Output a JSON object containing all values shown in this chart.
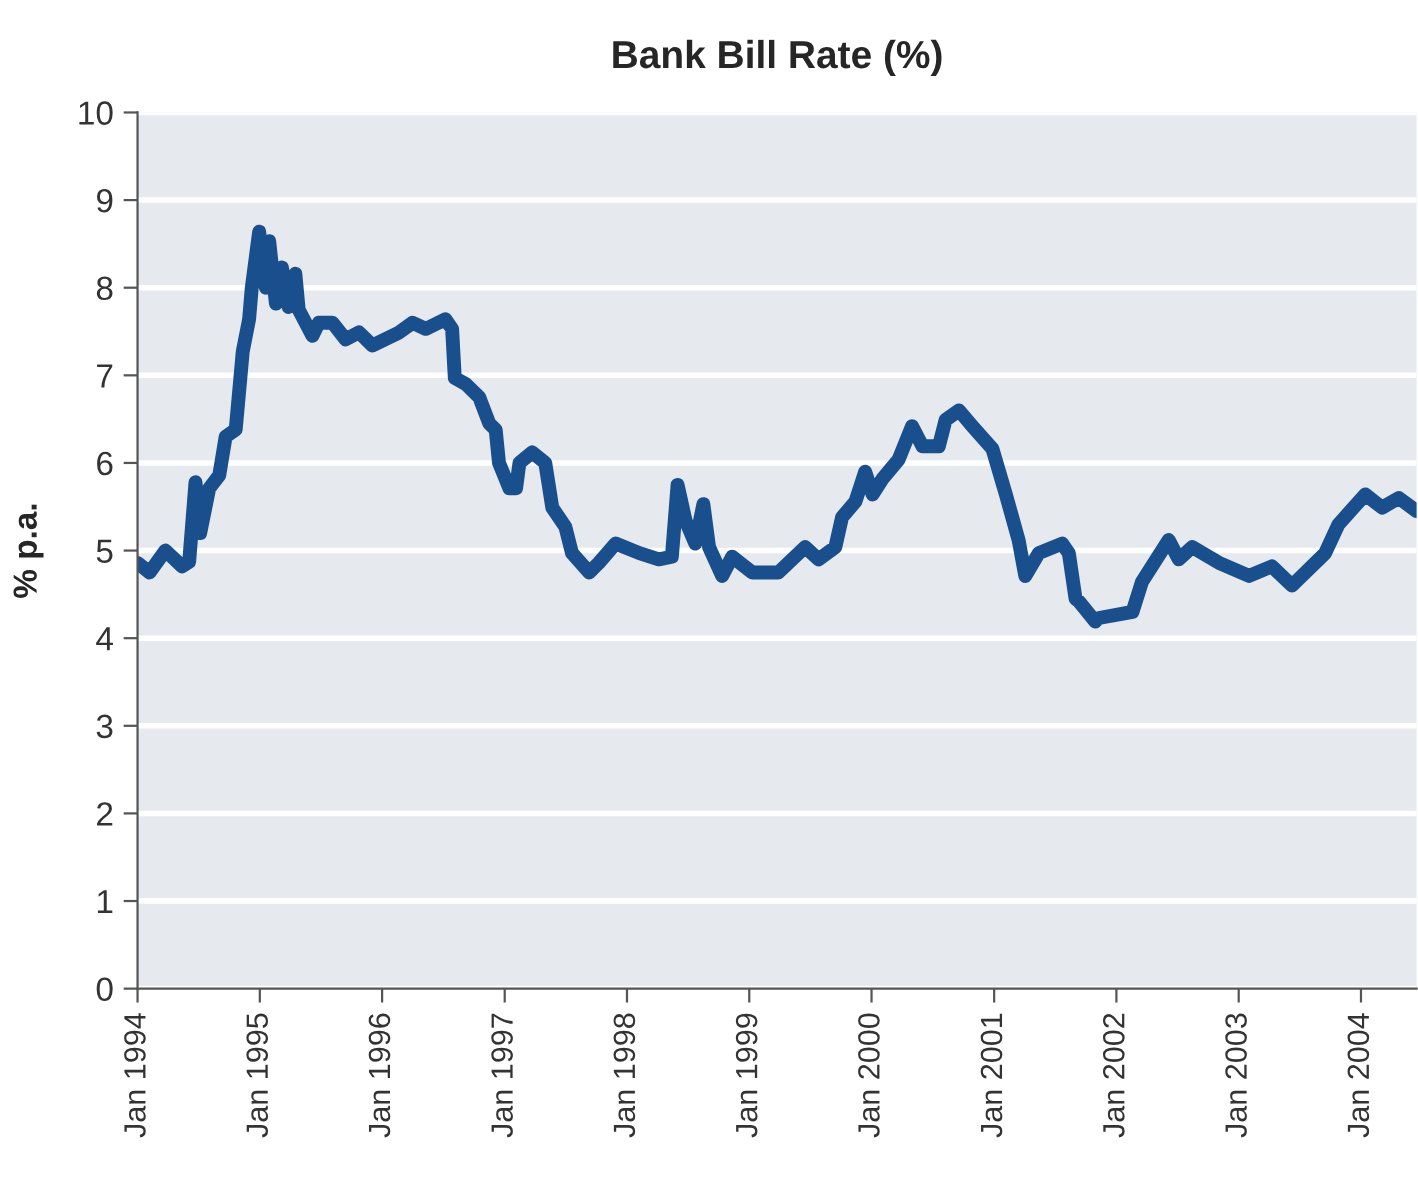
{
  "chart_data": {
    "type": "line",
    "title": "Bank Bill Rate (%)",
    "ylabel": "% p.a.",
    "x": [
      "1994-01-01",
      "1994-02-06",
      "1994-03-25",
      "1994-05-14",
      "1994-06-04",
      "1994-06-23",
      "1994-07-07",
      "1994-08-03",
      "1994-09-02",
      "1994-09-21",
      "1994-10-21",
      "1994-11-11",
      "1994-11-30",
      "1994-12-08",
      "1994-12-30",
      "1995-01-19",
      "1995-01-29",
      "1995-02-18",
      "1995-03-08",
      "1995-03-28",
      "1995-04-17",
      "1995-04-27",
      "1995-06-07",
      "1995-06-26",
      "1995-08-06",
      "1995-09-14",
      "1995-10-24",
      "1995-12-03",
      "1996-02-21",
      "1996-04-01",
      "1996-05-10",
      "1996-07-08",
      "1996-07-28",
      "1996-08-05",
      "1996-09-07",
      "1996-10-17",
      "1996-11-16",
      "1996-12-05",
      "1996-12-15",
      "1997-01-15",
      "1997-02-04",
      "1997-02-14",
      "1997-03-24",
      "1997-05-02",
      "1997-05-23",
      "1997-07-01",
      "1997-07-21",
      "1997-09-10",
      "1997-10-09",
      "1997-11-28",
      "1998-02-07",
      "1998-04-06",
      "1998-05-15",
      "1998-06-01",
      "1998-06-25",
      "1998-07-24",
      "1998-08-17",
      "1998-09-03",
      "1998-10-12",
      "1998-11-11",
      "1999-01-10",
      "1999-03-29",
      "1999-06-17",
      "1999-07-27",
      "1999-09-15",
      "1999-10-05",
      "1999-11-14",
      "1999-12-13",
      "2000-01-04",
      "2000-02-03",
      "2000-03-22",
      "2000-05-01",
      "2000-06-01",
      "2000-07-20",
      "2000-08-09",
      "2000-09-18",
      "2000-10-28",
      "2000-12-27",
      "2001-02-05",
      "2001-03-15",
      "2001-04-04",
      "2001-05-14",
      "2001-07-23",
      "2001-08-12",
      "2001-09-01",
      "2001-09-11",
      "2001-10-30",
      "2001-11-10",
      "2002-02-18",
      "2002-03-18",
      "2002-06-06",
      "2002-07-06",
      "2002-08-15",
      "2002-11-03",
      "2003-02-01",
      "2003-04-10",
      "2003-06-09",
      "2003-09-16",
      "2003-10-26",
      "2004-01-14",
      "2004-03-04",
      "2004-04-23",
      "2004-06-15"
    ],
    "series": [
      {
        "color": "#1a4f8e",
        "values": [
          4.86,
          4.75,
          5.0,
          4.82,
          4.87,
          5.78,
          5.2,
          5.71,
          5.86,
          6.3,
          6.38,
          7.27,
          7.64,
          8.0,
          8.64,
          8.0,
          8.53,
          7.82,
          8.23,
          7.78,
          8.16,
          7.75,
          7.45,
          7.6,
          7.6,
          7.41,
          7.49,
          7.34,
          7.49,
          7.6,
          7.53,
          7.64,
          7.53,
          6.97,
          6.9,
          6.75,
          6.45,
          6.38,
          6.0,
          5.71,
          5.71,
          6.0,
          6.12,
          6.0,
          5.49,
          5.27,
          4.97,
          4.75,
          4.86,
          5.08,
          4.97,
          4.9,
          4.93,
          5.75,
          5.34,
          5.08,
          5.53,
          5.04,
          4.71,
          4.93,
          4.75,
          4.75,
          5.04,
          4.9,
          5.04,
          5.38,
          5.56,
          5.9,
          5.64,
          5.82,
          6.04,
          6.42,
          6.19,
          6.19,
          6.49,
          6.6,
          6.42,
          6.16,
          5.64,
          5.12,
          4.71,
          4.97,
          5.08,
          4.97,
          4.45,
          4.42,
          4.19,
          4.23,
          4.3,
          4.64,
          5.12,
          4.9,
          5.04,
          4.86,
          4.71,
          4.82,
          4.6,
          4.97,
          5.3,
          5.64,
          5.49,
          5.6,
          5.45
        ]
      }
    ],
    "xlim": [
      "1994-01-01",
      "2004-06-15"
    ],
    "xticks": [
      {
        "value": "1994-01",
        "label": "Jan 1994"
      },
      {
        "value": "1995-01",
        "label": "Jan 1995"
      },
      {
        "value": "1996-01",
        "label": "Jan 1996"
      },
      {
        "value": "1997-01",
        "label": "Jan 1997"
      },
      {
        "value": "1998-01",
        "label": "Jan 1998"
      },
      {
        "value": "1999-01",
        "label": "Jan 1999"
      },
      {
        "value": "2000-01",
        "label": "Jan 2000"
      },
      {
        "value": "2001-01",
        "label": "Jan 2001"
      },
      {
        "value": "2002-01",
        "label": "Jan 2002"
      },
      {
        "value": "2003-01",
        "label": "Jan 2003"
      },
      {
        "value": "2004-01",
        "label": "Jan 2004"
      }
    ],
    "ylim": [
      0,
      10
    ],
    "yticks": [
      0,
      1,
      2,
      3,
      4,
      5,
      6,
      7,
      8,
      9,
      10
    ],
    "grid": "y",
    "marker": "none",
    "line_style": "solid"
  }
}
